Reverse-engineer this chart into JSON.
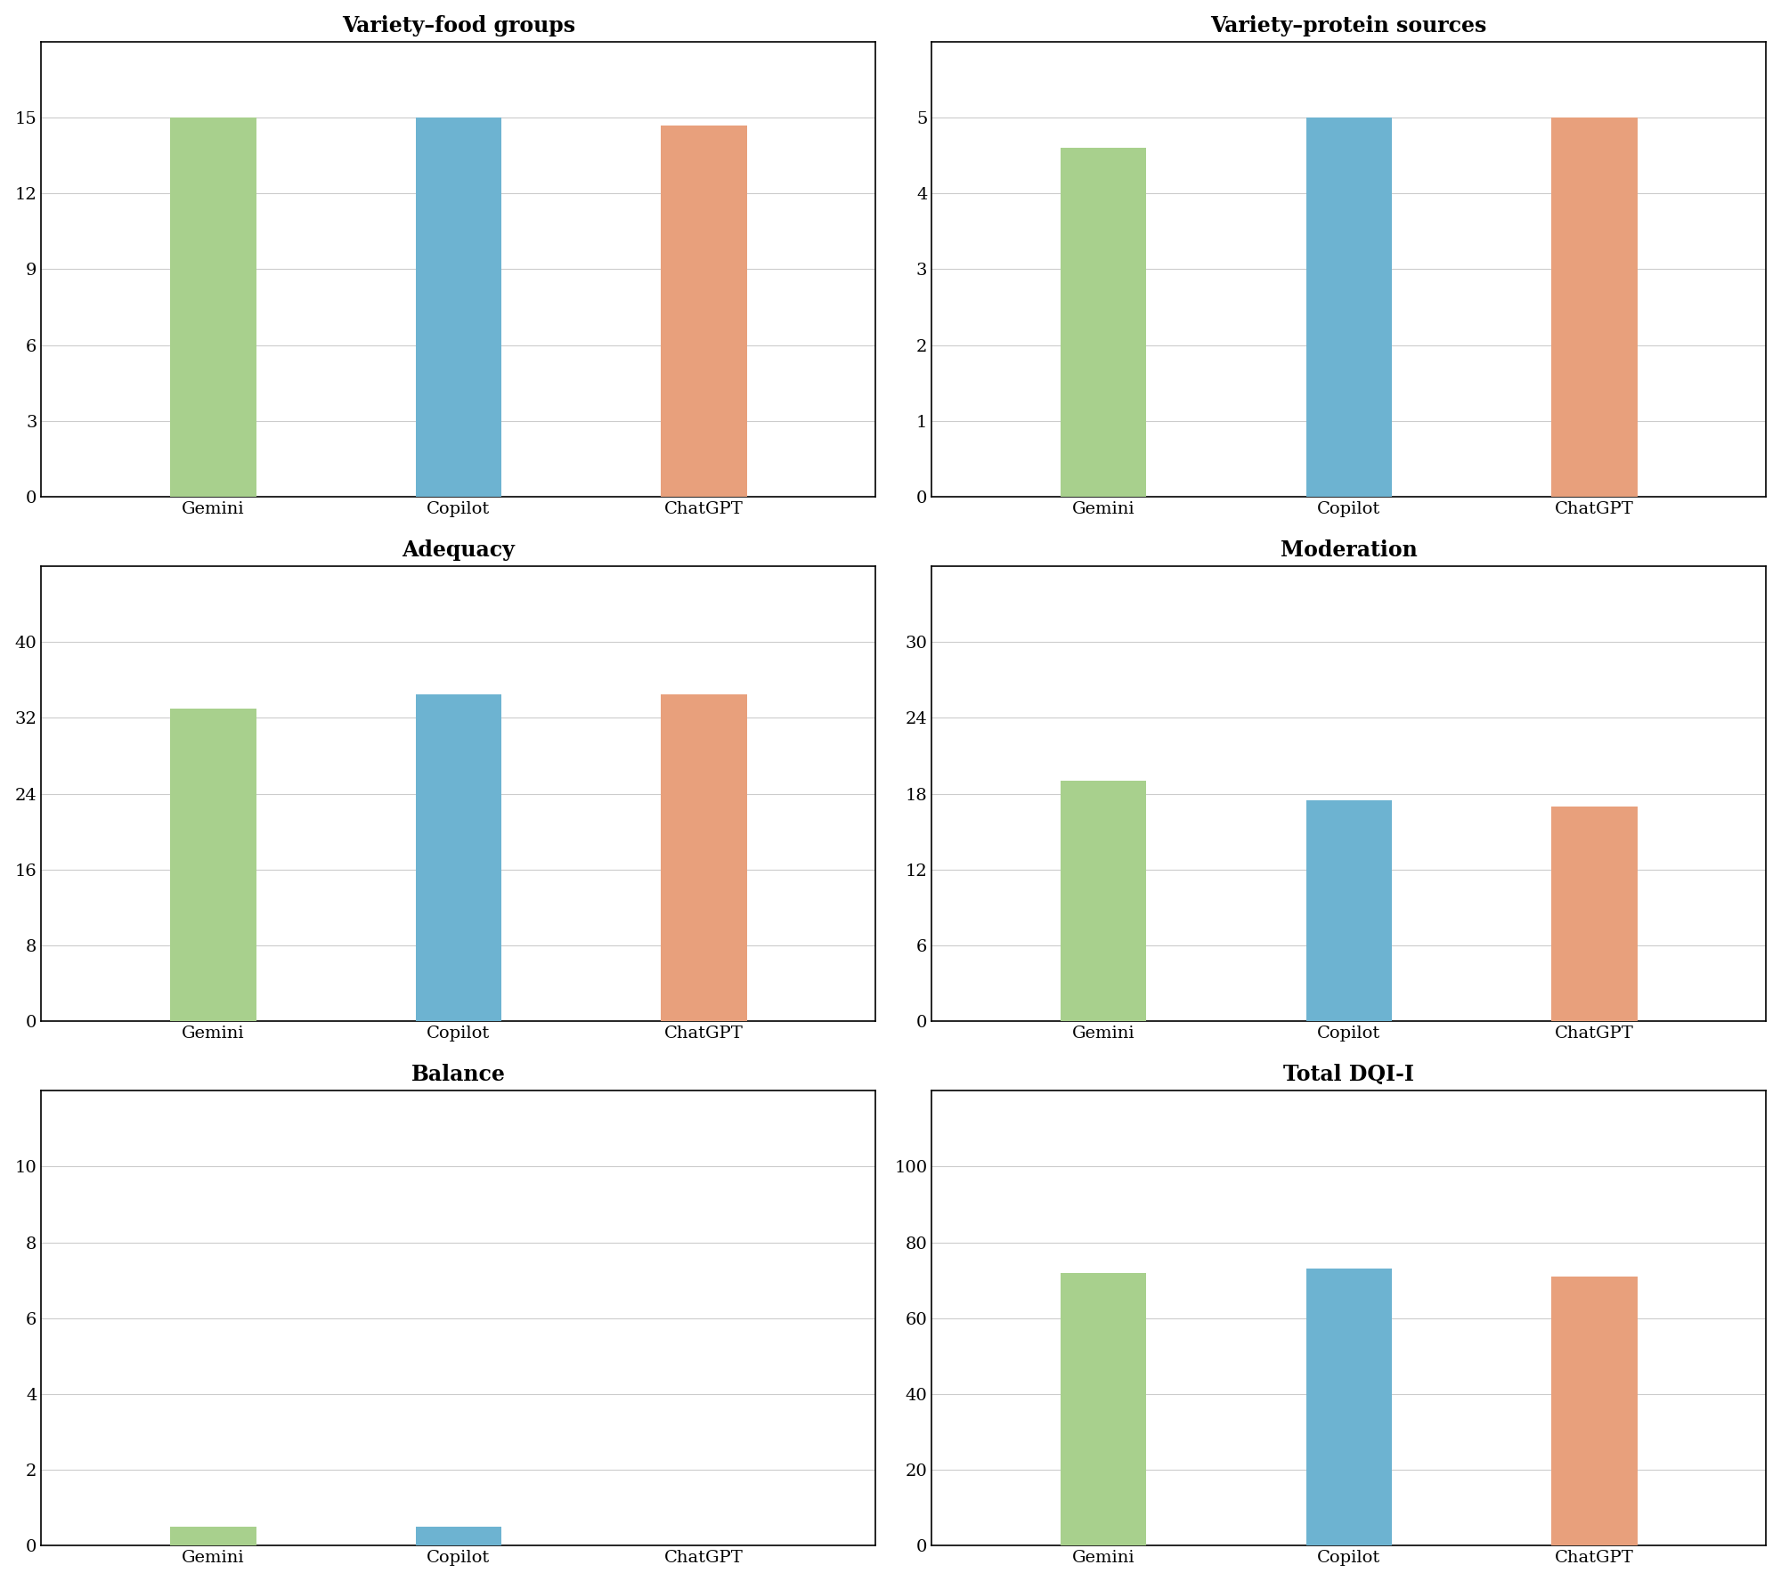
{
  "subplots": [
    {
      "title": "Variety–food groups",
      "values": [
        15.0,
        15.0,
        14.7
      ],
      "ylim": [
        0,
        18
      ],
      "yticks": [
        0,
        3,
        6,
        9,
        12,
        15
      ]
    },
    {
      "title": "Variety–protein sources",
      "values": [
        4.6,
        5.0,
        5.0
      ],
      "ylim": [
        0,
        6
      ],
      "yticks": [
        0,
        1,
        2,
        3,
        4,
        5
      ]
    },
    {
      "title": "Adequacy",
      "values": [
        33.0,
        34.5,
        34.5
      ],
      "ylim": [
        0,
        48
      ],
      "yticks": [
        0,
        8,
        16,
        24,
        32,
        40
      ]
    },
    {
      "title": "Moderation",
      "values": [
        19.0,
        17.5,
        17.0
      ],
      "ylim": [
        0,
        36
      ],
      "yticks": [
        0,
        6,
        12,
        18,
        24,
        30
      ]
    },
    {
      "title": "Balance",
      "values": [
        0.5,
        0.5,
        0.0
      ],
      "ylim": [
        0,
        12
      ],
      "yticks": [
        0,
        2,
        4,
        6,
        8,
        10
      ]
    },
    {
      "title": "Total DQI-I",
      "values": [
        72.0,
        73.0,
        71.0
      ],
      "ylim": [
        0,
        120
      ],
      "yticks": [
        0,
        20,
        40,
        60,
        80,
        100
      ]
    }
  ],
  "categories": [
    "Gemini",
    "Copilot",
    "ChatGPT"
  ],
  "bar_colors": [
    "#a8d08d",
    "#6db3d1",
    "#e8a07c"
  ],
  "bar_width": 0.35,
  "background_color": "#ffffff",
  "title_fontsize": 17,
  "tick_fontsize": 14,
  "label_fontsize": 14,
  "grid_color": "#cccccc",
  "edge_color": "none"
}
